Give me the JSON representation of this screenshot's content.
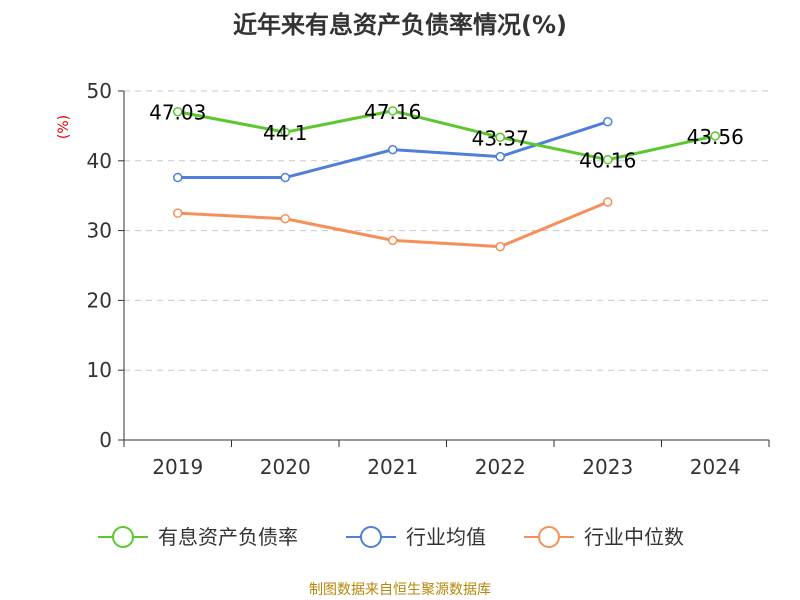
{
  "chart_data": {
    "type": "line",
    "title": "近年来有息资产负债率情况(%)",
    "ylabel": "(%)",
    "categories": [
      "2019",
      "2020",
      "2021",
      "2022",
      "2023",
      "2024"
    ],
    "ylim": [
      0,
      50
    ],
    "yticks": [
      0,
      10,
      20,
      30,
      40,
      50
    ],
    "grid": true,
    "legend_position": "bottom",
    "series": [
      {
        "name": "有息资产负债率",
        "color": "#5cc72e",
        "values": [
          47.03,
          44.1,
          47.16,
          43.37,
          40.16,
          43.56
        ],
        "labels": [
          "47.03",
          "44.1",
          "47.16",
          "43.37",
          "40.16",
          "43.56"
        ]
      },
      {
        "name": "行业均值",
        "color": "#4f7fd8",
        "values": [
          37.6,
          37.6,
          41.6,
          40.6,
          45.6,
          null
        ]
      },
      {
        "name": "行业中位数",
        "color": "#f5905a",
        "values": [
          32.5,
          31.7,
          28.6,
          27.7,
          34.1,
          null
        ]
      }
    ],
    "source": "制图数据来自恒生聚源数据库"
  }
}
